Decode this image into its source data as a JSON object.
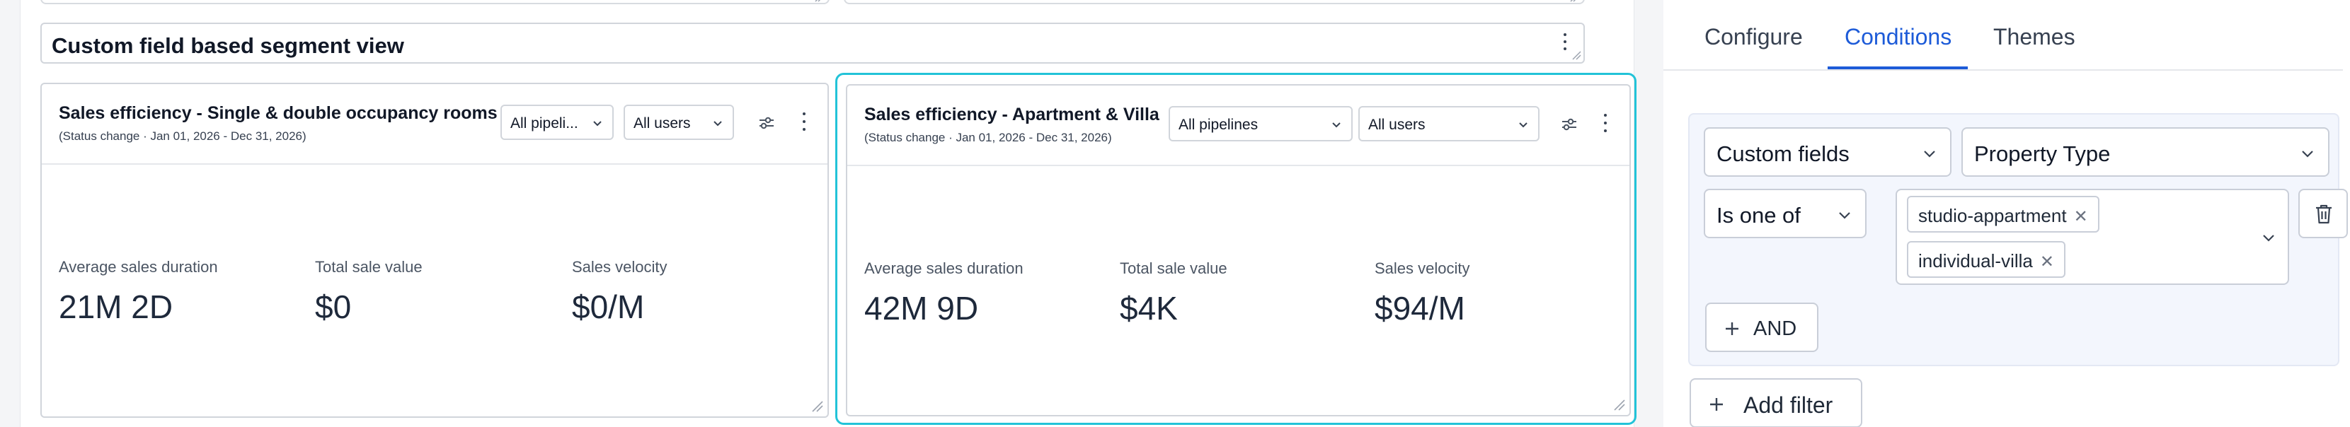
{
  "section": {
    "title": "Custom field based segment view"
  },
  "cards": [
    {
      "title": "Sales efficiency - Single & double occupancy rooms",
      "subtitle": "(Status change · Jan 01, 2026 - Dec 31, 2026)",
      "pipeline_select": "All pipeli...",
      "users_select": "All users",
      "metrics": [
        {
          "label": "Average sales duration",
          "value": "21M 2D"
        },
        {
          "label": "Total sale value",
          "value": "$0"
        },
        {
          "label": "Sales velocity",
          "value": "$0/M"
        }
      ]
    },
    {
      "title": "Sales efficiency - Apartment & Villa",
      "subtitle": "(Status change · Jan 01, 2026 - Dec 31, 2026)",
      "pipeline_select": "All pipelines",
      "users_select": "All users",
      "selected": true,
      "metrics": [
        {
          "label": "Average sales duration",
          "value": "42M 9D"
        },
        {
          "label": "Total sale value",
          "value": "$4K"
        },
        {
          "label": "Sales velocity",
          "value": "$94/M"
        }
      ]
    }
  ],
  "panel": {
    "tabs": [
      {
        "label": "Configure",
        "active": false
      },
      {
        "label": "Conditions",
        "active": true
      },
      {
        "label": "Themes",
        "active": false
      }
    ],
    "filter": {
      "field_type": "Custom fields",
      "field": "Property Type",
      "operator": "Is one of",
      "values": [
        "studio-appartment",
        "individual-villa"
      ]
    },
    "and_label": "AND",
    "add_filter_label": "Add filter"
  },
  "colors": {
    "accent": "#1d5bd8",
    "selected_outline": "#22c3d8",
    "filter_background": "#f3f6fd"
  },
  "icons": [
    "kebab-icon",
    "tune-icon",
    "chevron-down-icon",
    "close-icon",
    "trash-icon",
    "plus-icon",
    "resize-handle-icon"
  ]
}
